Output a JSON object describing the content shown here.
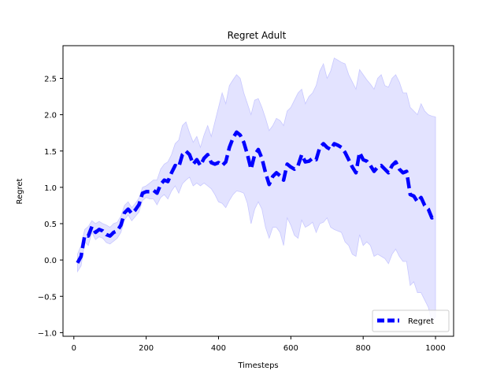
{
  "chart_data": {
    "type": "line",
    "title": "Regret Adult",
    "xlabel": "Timesteps",
    "ylabel": "Regret",
    "xlim": [
      -30,
      1050
    ],
    "ylim": [
      -1.05,
      2.95
    ],
    "xticks": [
      0,
      200,
      400,
      600,
      800,
      1000
    ],
    "yticks": [
      -1.0,
      -0.5,
      0.0,
      0.5,
      1.0,
      1.5,
      2.0,
      2.5
    ],
    "xtick_labels": [
      "0",
      "200",
      "400",
      "600",
      "800",
      "1000"
    ],
    "ytick_labels": [
      "−1.0",
      "−0.5",
      "0.0",
      "0.5",
      "1.0",
      "1.5",
      "2.0",
      "2.5"
    ],
    "grid": false,
    "legend_position": "lower-right",
    "series": [
      {
        "name": "Regret",
        "color": "#0000ff",
        "line_style": "dashed",
        "band_color": "#e0e0ff",
        "x": [
          10,
          20,
          30,
          40,
          50,
          60,
          70,
          80,
          90,
          100,
          110,
          120,
          130,
          140,
          150,
          160,
          170,
          180,
          190,
          200,
          210,
          220,
          230,
          240,
          250,
          260,
          270,
          280,
          290,
          300,
          310,
          320,
          330,
          340,
          350,
          360,
          370,
          380,
          390,
          400,
          410,
          420,
          430,
          440,
          450,
          460,
          470,
          480,
          490,
          500,
          510,
          520,
          530,
          540,
          550,
          560,
          570,
          580,
          590,
          600,
          610,
          620,
          630,
          640,
          650,
          660,
          670,
          680,
          690,
          700,
          710,
          720,
          730,
          740,
          750,
          760,
          770,
          780,
          790,
          800,
          810,
          820,
          830,
          840,
          850,
          860,
          870,
          880,
          890,
          900,
          910,
          920,
          930,
          940,
          950,
          960,
          970,
          980,
          990,
          1000
        ],
        "y": [
          -0.04,
          0.05,
          0.34,
          0.33,
          0.46,
          0.38,
          0.42,
          0.4,
          0.35,
          0.33,
          0.38,
          0.4,
          0.48,
          0.65,
          0.7,
          0.64,
          0.69,
          0.76,
          0.92,
          0.94,
          0.94,
          0.96,
          0.92,
          1.04,
          1.1,
          1.08,
          1.2,
          1.3,
          1.28,
          1.45,
          1.5,
          1.45,
          1.32,
          1.38,
          1.3,
          1.4,
          1.45,
          1.34,
          1.32,
          1.34,
          1.3,
          1.35,
          1.55,
          1.68,
          1.76,
          1.72,
          1.62,
          1.45,
          1.25,
          1.45,
          1.52,
          1.4,
          1.2,
          1.04,
          1.15,
          1.2,
          1.16,
          1.1,
          1.32,
          1.28,
          1.25,
          1.3,
          1.45,
          1.35,
          1.36,
          1.4,
          1.38,
          1.55,
          1.6,
          1.55,
          1.52,
          1.6,
          1.58,
          1.55,
          1.48,
          1.38,
          1.28,
          1.2,
          1.48,
          1.38,
          1.36,
          1.3,
          1.22,
          1.28,
          1.3,
          1.25,
          1.2,
          1.3,
          1.35,
          1.25,
          1.2,
          1.22,
          0.9,
          0.88,
          0.8,
          0.86,
          0.75,
          0.7,
          0.58,
          0.6
        ],
        "upper": [
          0.08,
          0.2,
          0.42,
          0.46,
          0.54,
          0.5,
          0.53,
          0.5,
          0.48,
          0.45,
          0.5,
          0.52,
          0.6,
          0.75,
          0.8,
          0.72,
          0.78,
          0.85,
          1.0,
          1.02,
          1.06,
          1.1,
          1.1,
          1.25,
          1.32,
          1.35,
          1.45,
          1.6,
          1.65,
          1.85,
          1.9,
          1.75,
          1.62,
          1.7,
          1.55,
          1.72,
          1.85,
          1.7,
          1.9,
          2.1,
          2.3,
          2.15,
          2.4,
          2.48,
          2.55,
          2.5,
          2.3,
          2.15,
          2.0,
          2.2,
          2.22,
          2.1,
          1.95,
          1.78,
          1.85,
          1.95,
          1.92,
          1.85,
          2.05,
          2.1,
          2.2,
          2.3,
          2.35,
          2.15,
          2.25,
          2.3,
          2.4,
          2.6,
          2.7,
          2.5,
          2.6,
          2.78,
          2.75,
          2.72,
          2.7,
          2.55,
          2.45,
          2.35,
          2.62,
          2.55,
          2.48,
          2.42,
          2.35,
          2.5,
          2.55,
          2.4,
          2.38,
          2.5,
          2.55,
          2.45,
          2.3,
          2.3,
          2.1,
          2.05,
          2.0,
          2.15,
          2.05,
          2.0,
          1.98,
          1.97
        ],
        "lower": [
          -0.16,
          -0.08,
          0.25,
          0.2,
          0.38,
          0.28,
          0.32,
          0.3,
          0.24,
          0.22,
          0.26,
          0.3,
          0.38,
          0.55,
          0.62,
          0.54,
          0.6,
          0.66,
          0.82,
          0.86,
          0.84,
          0.84,
          0.76,
          0.86,
          0.9,
          0.84,
          0.95,
          1.02,
          0.92,
          1.05,
          1.1,
          1.14,
          1.02,
          1.06,
          1.02,
          1.06,
          1.02,
          0.98,
          0.9,
          0.8,
          0.78,
          0.72,
          0.82,
          0.9,
          0.95,
          0.94,
          0.92,
          0.78,
          0.5,
          0.7,
          0.8,
          0.7,
          0.45,
          0.3,
          0.45,
          0.45,
          0.38,
          0.2,
          0.58,
          0.48,
          0.34,
          0.3,
          0.55,
          0.45,
          0.48,
          0.52,
          0.38,
          0.5,
          0.52,
          0.58,
          0.45,
          0.42,
          0.4,
          0.38,
          0.25,
          0.2,
          0.08,
          0.05,
          0.35,
          0.2,
          0.25,
          0.2,
          0.05,
          0.08,
          0.05,
          0.02,
          -0.05,
          0.08,
          0.15,
          0.05,
          -0.02,
          -0.02,
          -0.35,
          -0.3,
          -0.45,
          -0.45,
          -0.55,
          -0.65,
          -0.85,
          -0.78
        ]
      }
    ]
  }
}
